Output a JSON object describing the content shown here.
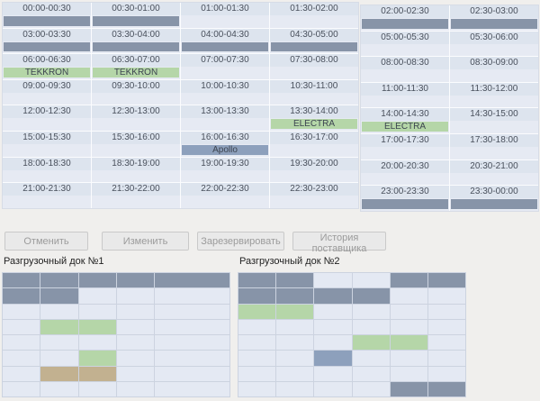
{
  "schedule": {
    "rows": [
      {
        "cells": [
          {
            "time": "00:00-00:30",
            "status": "occupied",
            "label": ""
          },
          {
            "time": "00:30-01:00",
            "status": "occupied",
            "label": ""
          },
          {
            "time": "01:00-01:30",
            "status": "free",
            "label": ""
          },
          {
            "time": "01:30-02:00",
            "status": "free",
            "label": ""
          },
          {
            "time": "02:00-02:30",
            "status": "occupied",
            "label": ""
          },
          {
            "time": "02:30-03:00",
            "status": "occupied",
            "label": ""
          }
        ]
      },
      {
        "cells": [
          {
            "time": "03:00-03:30",
            "status": "occupied",
            "label": ""
          },
          {
            "time": "03:30-04:00",
            "status": "occupied",
            "label": ""
          },
          {
            "time": "04:00-04:30",
            "status": "occupied",
            "label": ""
          },
          {
            "time": "04:30-05:00",
            "status": "occupied",
            "label": ""
          },
          {
            "time": "05:00-05:30",
            "status": "free",
            "label": ""
          },
          {
            "time": "05:30-06:00",
            "status": "free",
            "label": ""
          }
        ]
      },
      {
        "cells": [
          {
            "time": "06:00-06:30",
            "status": "green",
            "label": "TEKKRON"
          },
          {
            "time": "06:30-07:00",
            "status": "green",
            "label": "TEKKRON"
          },
          {
            "time": "07:00-07:30",
            "status": "free",
            "label": ""
          },
          {
            "time": "07:30-08:00",
            "status": "free",
            "label": ""
          },
          {
            "time": "08:00-08:30",
            "status": "free",
            "label": ""
          },
          {
            "time": "08:30-09:00",
            "status": "free",
            "label": ""
          }
        ]
      },
      {
        "cells": [
          {
            "time": "09:00-09:30",
            "status": "free",
            "label": ""
          },
          {
            "time": "09:30-10:00",
            "status": "free",
            "label": ""
          },
          {
            "time": "10:00-10:30",
            "status": "free",
            "label": ""
          },
          {
            "time": "10:30-11:00",
            "status": "free",
            "label": ""
          },
          {
            "time": "11:00-11:30",
            "status": "free",
            "label": ""
          },
          {
            "time": "11:30-12:00",
            "status": "free",
            "label": ""
          }
        ]
      },
      {
        "cells": [
          {
            "time": "12:00-12:30",
            "status": "free",
            "label": ""
          },
          {
            "time": "12:30-13:00",
            "status": "free",
            "label": ""
          },
          {
            "time": "13:00-13:30",
            "status": "free",
            "label": ""
          },
          {
            "time": "13:30-14:00",
            "status": "green",
            "label": "ELECTRA"
          },
          {
            "time": "14:00-14:30",
            "status": "green",
            "label": "ELECTRA"
          },
          {
            "time": "14:30-15:00",
            "status": "free",
            "label": ""
          }
        ]
      },
      {
        "cells": [
          {
            "time": "15:00-15:30",
            "status": "free",
            "label": ""
          },
          {
            "time": "15:30-16:00",
            "status": "free",
            "label": ""
          },
          {
            "time": "16:00-16:30",
            "status": "blue",
            "label": "Apollo"
          },
          {
            "time": "16:30-17:00",
            "status": "free",
            "label": ""
          },
          {
            "time": "17:00-17:30",
            "status": "free",
            "label": ""
          },
          {
            "time": "17:30-18:00",
            "status": "free",
            "label": ""
          }
        ]
      },
      {
        "cells": [
          {
            "time": "18:00-18:30",
            "status": "free",
            "label": ""
          },
          {
            "time": "18:30-19:00",
            "status": "free",
            "label": ""
          },
          {
            "time": "19:00-19:30",
            "status": "free",
            "label": ""
          },
          {
            "time": "19:30-20:00",
            "status": "free",
            "label": ""
          },
          {
            "time": "20:00-20:30",
            "status": "free",
            "label": ""
          },
          {
            "time": "20:30-21:00",
            "status": "free",
            "label": ""
          }
        ]
      },
      {
        "cells": [
          {
            "time": "21:00-21:30",
            "status": "free",
            "label": ""
          },
          {
            "time": "21:30-22:00",
            "status": "free",
            "label": ""
          },
          {
            "time": "22:00-22:30",
            "status": "free",
            "label": ""
          },
          {
            "time": "22:30-23:00",
            "status": "free",
            "label": ""
          },
          {
            "time": "23:00-23:30",
            "status": "occupied",
            "label": ""
          },
          {
            "time": "23:30-00:00",
            "status": "occupied",
            "label": ""
          }
        ]
      }
    ]
  },
  "toolbar": {
    "buttons": [
      "Отменить",
      "Изменить",
      "Зарезервировать",
      "История поставщика"
    ]
  },
  "docks": [
    {
      "title": "Разгрузочный док №1",
      "rows": [
        [
          "occupied",
          "occupied",
          "occupied",
          "occupied",
          "occupied"
        ],
        [
          "occupied",
          "occupied",
          "free",
          "free",
          "free"
        ],
        [
          "free",
          "free",
          "free",
          "free",
          "free"
        ],
        [
          "free",
          "green",
          "green",
          "free",
          "free"
        ],
        [
          "free",
          "free",
          "free",
          "free",
          "free"
        ],
        [
          "free",
          "free",
          "green",
          "free",
          "free"
        ],
        [
          "free",
          "tan",
          "tan",
          "free",
          "free"
        ],
        [
          "free",
          "free",
          "free",
          "free",
          "free"
        ]
      ]
    },
    {
      "title": "Разгрузочный док №2",
      "rows": [
        [
          "occupied",
          "occupied",
          "free",
          "free",
          "occupied",
          "occupied"
        ],
        [
          "occupied",
          "occupied",
          "occupied",
          "occupied",
          "free",
          "free"
        ],
        [
          "green",
          "green",
          "free",
          "free",
          "free",
          "free"
        ],
        [
          "free",
          "free",
          "free",
          "free",
          "free",
          "free"
        ],
        [
          "free",
          "free",
          "free",
          "green",
          "green",
          "free"
        ],
        [
          "free",
          "free",
          "blue",
          "free",
          "free",
          "free"
        ],
        [
          "free",
          "free",
          "free",
          "free",
          "free",
          "free"
        ],
        [
          "free",
          "free",
          "free",
          "free",
          "occupied",
          "occupied"
        ]
      ]
    }
  ],
  "colors": {
    "occupied": "#8794a8",
    "green": "#b5d6a8",
    "blue": "#8da0bc",
    "tan": "#c2b190",
    "free_cell": "#e4e9f3",
    "header_cell": "#dde4ee"
  }
}
